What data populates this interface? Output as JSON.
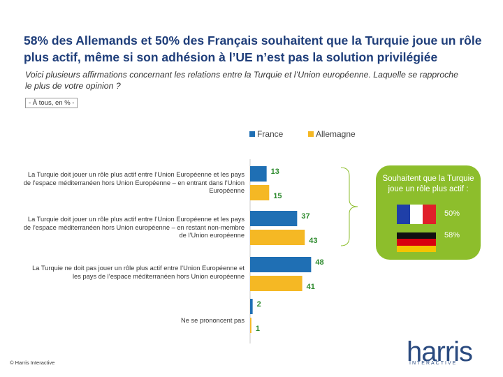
{
  "header": {
    "title": "58% des Allemands et 50% des Français souhaitent que la Turquie joue un rôle plus actif, même si son adhésion à l’UE n’est pas la solution privilégiée",
    "subtitle": "Voici plusieurs affirmations concernant les relations entre la Turquie et l’Union européenne. Laquelle se rapproche le plus de votre opinion ?",
    "scope": "- À tous, en % -"
  },
  "colors": {
    "france": "#1f6fb4",
    "allemagne": "#f5b824",
    "callout": "#8dbe2c",
    "title": "#1f3e7a"
  },
  "chart_data": {
    "type": "bar",
    "orientation": "horizontal",
    "categories": [
      "La Turquie doit jouer un rôle plus actif entre l’Union Européenne et les pays de l’espace méditerranéen hors Union Européenne – en entrant dans l’Union Européenne",
      "La Turquie doit jouer un rôle plus actif entre l’Union Européenne et les pays de l’espace méditerranéen hors Union européenne – en restant non-membre de l’Union européenne",
      "La Turquie ne doit pas jouer un rôle plus actif entre l’Union Européenne et les pays de l’espace méditerranéen hors Union européenne",
      "Ne se prononcent pas"
    ],
    "series": [
      {
        "name": "France",
        "values": [
          13,
          37,
          48,
          2
        ]
      },
      {
        "name": "Allemagne",
        "values": [
          15,
          43,
          41,
          1
        ]
      }
    ],
    "legend_position": "top",
    "xlim": [
      0,
      50
    ]
  },
  "callout": {
    "title": "Souhaitent que la Turquie joue un rôle plus actif :",
    "france_value": "50%",
    "allemagne_value": "58%"
  },
  "footer": {
    "logo_text": "harris",
    "logo_subtext": "INTERACTIVE",
    "copyright": "© Harris Interactive"
  }
}
